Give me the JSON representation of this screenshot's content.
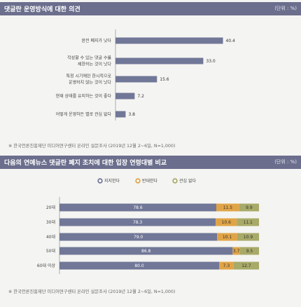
{
  "chart1": {
    "title": "댓글란 운영방식에 대한 의견",
    "unit": "(단위 : %)",
    "note": "※  한국언론진흥재단 미디어연구센터 온라인 설문조사 (2019년 12월 2~6일, N=1,000)"
  },
  "chart2": {
    "title": "다음의 연예뉴스 댓글란 폐지 조치에 대한 입장 연령대별 비교",
    "unit": "(단위 : %)",
    "note": "※  한국언론진흥재단 미디어연구센터 온라인 설문조사 (2019년 12월 2~6일, N=1,000)"
  },
  "colors": {
    "header": "#6b6e8c",
    "bar": "#717797",
    "support": "#717797",
    "oppose": "#e0a447",
    "neutral": "#a8aa68"
  },
  "chart_data": [
    {
      "type": "bar",
      "orientation": "horizontal",
      "title": "댓글란 운영방식에 대한 의견",
      "unit": "%",
      "categories": [
        [
          "완전 폐지가 낫다"
        ],
        [
          "작성할 수 있는 댓글 수를",
          "제한하는 것이 낫다"
        ],
        [
          "특정 시기에만 한시적으로",
          "운영하지 않는 것이 낫다"
        ],
        [
          "현재 상태를 유지하는 것이 좋다"
        ],
        [
          "어떻게 운영하든 별로 관심 없다"
        ]
      ],
      "values": [
        40.4,
        33.0,
        15.6,
        7.2,
        3.8
      ],
      "xlim": [
        0,
        50
      ],
      "grid": false
    },
    {
      "type": "bar",
      "orientation": "horizontal",
      "stacked": true,
      "title": "다음의 연예뉴스 댓글란 폐지 조치에 대한 입장 연령대별 비교",
      "unit": "%",
      "categories": [
        "20대",
        "30대",
        "40대",
        "50대",
        "60대 이상"
      ],
      "series": [
        {
          "name": "지지한다",
          "values": [
            78.6,
            78.3,
            79.0,
            86.8,
            80.0
          ]
        },
        {
          "name": "반대한다",
          "values": [
            11.5,
            10.6,
            10.1,
            3.7,
            7.3
          ]
        },
        {
          "name": "관심 없다",
          "values": [
            9.9,
            11.1,
            10.9,
            9.5,
            12.7
          ]
        }
      ],
      "legend": "top-center",
      "xlim": [
        0,
        100
      ],
      "grid": false
    }
  ]
}
